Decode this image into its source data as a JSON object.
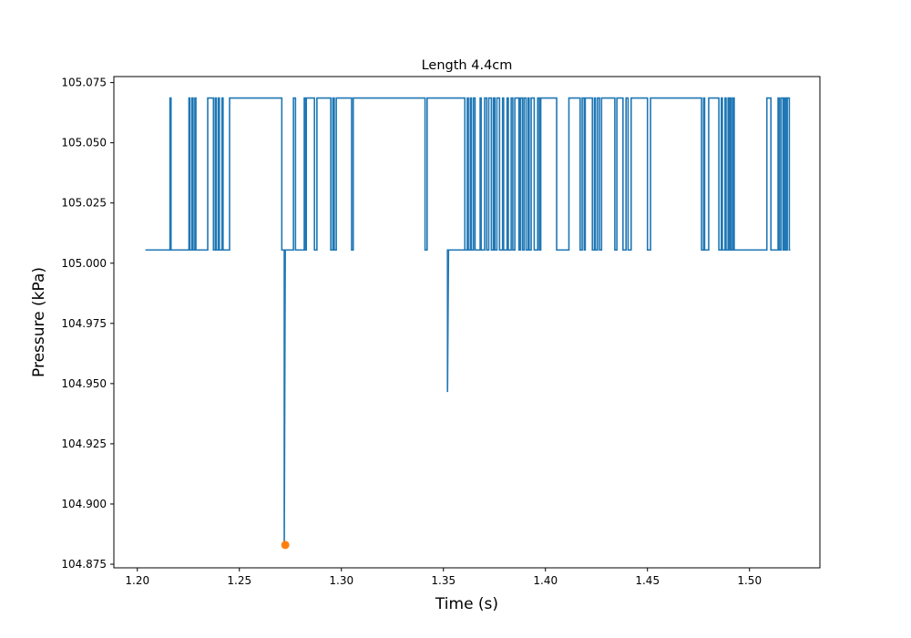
{
  "chart_data": {
    "type": "line",
    "title": "Length 4.4cm",
    "xlabel": "Time (s)",
    "ylabel": "Pressure (kPa)",
    "xlim": [
      1.1885,
      1.5345
    ],
    "ylim": [
      104.8735,
      105.0775
    ],
    "x_ticks": [
      1.2,
      1.25,
      1.3,
      1.35,
      1.4,
      1.45,
      1.5
    ],
    "x_tick_labels": [
      "1.20",
      "1.25",
      "1.30",
      "1.35",
      "1.40",
      "1.45",
      "1.50"
    ],
    "y_ticks": [
      104.875,
      104.9,
      104.925,
      104.95,
      104.975,
      105.0,
      105.025,
      105.05,
      105.075
    ],
    "y_tick_labels": [
      "104.875",
      "104.900",
      "104.925",
      "104.950",
      "104.975",
      "105.000",
      "105.025",
      "105.050",
      "105.075"
    ],
    "grid": false,
    "legend": "none",
    "series": [
      {
        "color": "#1f77b4",
        "style": "step",
        "levels": {
          "low": 105.0055,
          "high": 105.0686
        },
        "x_start": 1.204,
        "x_end": 1.52,
        "start_level": "low",
        "high_intervals": [
          [
            1.216,
            1.2165
          ],
          [
            1.2253,
            1.2258
          ],
          [
            1.2268,
            1.2273
          ],
          [
            1.2282,
            1.2287
          ],
          [
            1.2345,
            1.2373
          ],
          [
            1.2382,
            1.2387
          ],
          [
            1.2397,
            1.2402
          ],
          [
            1.2415,
            1.242
          ],
          [
            1.2452,
            1.2708
          ],
          [
            1.2765,
            1.2775
          ],
          [
            1.2818,
            1.2823
          ],
          [
            1.2828,
            1.2868
          ],
          [
            1.288,
            1.2948
          ],
          [
            1.2958,
            1.2965
          ],
          [
            1.2975,
            1.305
          ],
          [
            1.3058,
            1.341
          ],
          [
            1.342,
            1.3605
          ],
          [
            1.3617,
            1.3622
          ],
          [
            1.3632,
            1.3637
          ],
          [
            1.3647,
            1.3655
          ],
          [
            1.368,
            1.3685
          ],
          [
            1.3702,
            1.3712
          ],
          [
            1.3722,
            1.3735
          ],
          [
            1.3745,
            1.3752
          ],
          [
            1.3762,
            1.3775
          ],
          [
            1.379,
            1.3795
          ],
          [
            1.3812,
            1.3818
          ],
          [
            1.3832,
            1.384
          ],
          [
            1.385,
            1.387
          ],
          [
            1.3877,
            1.3887
          ],
          [
            1.3895,
            1.3905
          ],
          [
            1.3915,
            1.392
          ],
          [
            1.393,
            1.3945
          ],
          [
            1.3962,
            1.397
          ],
          [
            1.3977,
            1.4055
          ],
          [
            1.4115,
            1.417
          ],
          [
            1.418,
            1.419
          ],
          [
            1.4195,
            1.423
          ],
          [
            1.424,
            1.4245
          ],
          [
            1.4255,
            1.4265
          ],
          [
            1.4275,
            1.434
          ],
          [
            1.435,
            1.438
          ],
          [
            1.4395,
            1.4405
          ],
          [
            1.442,
            1.45
          ],
          [
            1.4515,
            1.4765
          ],
          [
            1.4775,
            1.478
          ],
          [
            1.48,
            1.485
          ],
          [
            1.4862,
            1.4867
          ],
          [
            1.488,
            1.4885
          ],
          [
            1.4895,
            1.49
          ],
          [
            1.4907,
            1.4912
          ],
          [
            1.492,
            1.4925
          ],
          [
            1.5085,
            1.5105
          ],
          [
            1.514,
            1.5147
          ],
          [
            1.5155,
            1.5165
          ],
          [
            1.5172,
            1.5178
          ],
          [
            1.5185,
            1.5195
          ]
        ],
        "dips": [
          {
            "x": 1.272,
            "to": 104.883,
            "hold_low_until": 1.2765
          },
          {
            "x": 1.352,
            "to": 104.9465
          }
        ]
      }
    ],
    "marker": {
      "x": 1.2725,
      "y": 104.883,
      "color": "#ff7f0e"
    }
  }
}
